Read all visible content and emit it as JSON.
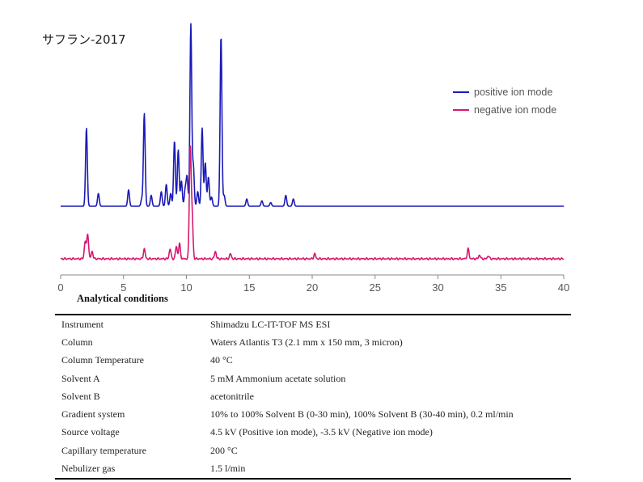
{
  "chart_title": "サフラン-2017",
  "chart_data": {
    "type": "line",
    "title": "サフラン-2017",
    "xlabel": "",
    "ylabel": "",
    "xlim": [
      0,
      40
    ],
    "xticks": [
      "0",
      "5",
      "10",
      "15",
      "20",
      "25",
      "30",
      "35",
      "40"
    ],
    "legend_position": "top-right",
    "grid": false,
    "series": [
      {
        "name": "positive ion mode",
        "color": "#1a1ab8",
        "baseline": 0,
        "peaks": [
          {
            "x": 2.05,
            "h": 0.43
          },
          {
            "x": 3.0,
            "h": 0.07
          },
          {
            "x": 5.4,
            "h": 0.09
          },
          {
            "x": 6.45,
            "h": 0.04
          },
          {
            "x": 6.65,
            "h": 0.51
          },
          {
            "x": 7.2,
            "h": 0.06
          },
          {
            "x": 8.0,
            "h": 0.08
          },
          {
            "x": 8.4,
            "h": 0.12
          },
          {
            "x": 8.75,
            "h": 0.07
          },
          {
            "x": 9.05,
            "h": 0.36
          },
          {
            "x": 9.35,
            "h": 0.31
          },
          {
            "x": 9.6,
            "h": 0.14
          },
          {
            "x": 9.9,
            "h": 0.09
          },
          {
            "x": 10.05,
            "h": 0.16
          },
          {
            "x": 10.35,
            "h": 1.0
          },
          {
            "x": 10.55,
            "h": 0.22
          },
          {
            "x": 10.9,
            "h": 0.08
          },
          {
            "x": 11.25,
            "h": 0.43
          },
          {
            "x": 11.5,
            "h": 0.24
          },
          {
            "x": 11.75,
            "h": 0.16
          },
          {
            "x": 12.0,
            "h": 0.05
          },
          {
            "x": 12.75,
            "h": 0.94
          },
          {
            "x": 13.0,
            "h": 0.06
          },
          {
            "x": 14.8,
            "h": 0.04
          },
          {
            "x": 16.0,
            "h": 0.03
          },
          {
            "x": 16.7,
            "h": 0.02
          },
          {
            "x": 17.9,
            "h": 0.06
          },
          {
            "x": 18.5,
            "h": 0.04
          }
        ]
      },
      {
        "name": "negative ion mode",
        "color": "#d6186e",
        "baseline": 0,
        "peaks": [
          {
            "x": 1.95,
            "h": 0.07
          },
          {
            "x": 2.15,
            "h": 0.1
          },
          {
            "x": 2.5,
            "h": 0.03
          },
          {
            "x": 6.65,
            "h": 0.04
          },
          {
            "x": 8.7,
            "h": 0.04
          },
          {
            "x": 9.2,
            "h": 0.05
          },
          {
            "x": 9.45,
            "h": 0.06
          },
          {
            "x": 10.3,
            "h": 0.44
          },
          {
            "x": 10.45,
            "h": 0.17
          },
          {
            "x": 12.3,
            "h": 0.03
          },
          {
            "x": 13.5,
            "h": 0.02
          },
          {
            "x": 20.2,
            "h": 0.02
          },
          {
            "x": 32.4,
            "h": 0.04
          },
          {
            "x": 33.3,
            "h": 0.015
          },
          {
            "x": 34.0,
            "h": 0.012
          }
        ]
      }
    ]
  },
  "legend": {
    "positive": {
      "label": "positive ion mode",
      "color": "#1a1ab8"
    },
    "negative": {
      "label": "negative ion mode",
      "color": "#d6186e"
    }
  },
  "conditions": {
    "title": "Analytical conditions",
    "rows": [
      {
        "param": "Instrument",
        "value": "Shimadzu LC-IT-TOF MS ESI"
      },
      {
        "param": "Column",
        "value": "Waters Atlantis T3 (2.1 mm x 150 mm, 3 micron)"
      },
      {
        "param": "Column Temperature",
        "value": "40 °C"
      },
      {
        "param": "Solvent A",
        "value": "5 mM Ammonium acetate solution"
      },
      {
        "param": "Solvent B",
        "value": "acetonitrile"
      },
      {
        "param": "Gradient system",
        "value": "10% to 100% Solvent B (0-30 min), 100% Solvent B (30-40 min), 0.2 ml/min"
      },
      {
        "param": "Source voltage",
        "value": "4.5 kV (Positive ion mode), -3.5 kV (Negative ion mode)"
      },
      {
        "param": "Capillary temperature",
        "value": "200 °C"
      },
      {
        "param": "Nebulizer gas",
        "value": "1.5 l/min"
      }
    ]
  }
}
